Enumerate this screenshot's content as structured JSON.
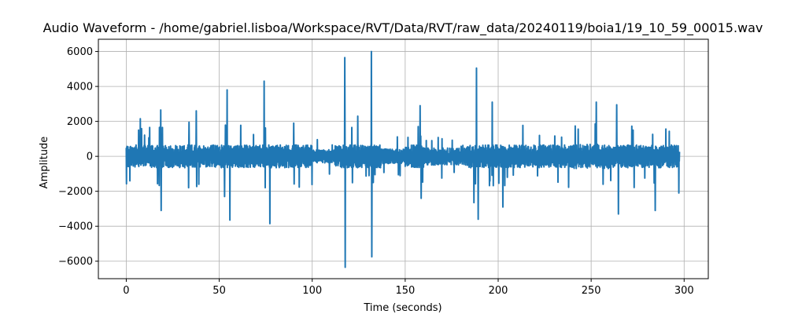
{
  "chart_data": {
    "type": "line",
    "title": "Audio Waveform - /home/gabriel.lisboa/Workspace/RVT/Data/RVT/raw_data/20240119/boia1/19_10_59_00015.wav",
    "xlabel": "Time (seconds)",
    "ylabel": "Amplitude",
    "xlim": [
      -15,
      313
    ],
    "ylim": [
      -7000,
      6700
    ],
    "xticks": [
      0,
      50,
      100,
      150,
      200,
      250,
      300
    ],
    "xtick_labels": [
      "0",
      "50",
      "100",
      "150",
      "200",
      "250",
      "300"
    ],
    "yticks": [
      -6000,
      -4000,
      -2000,
      0,
      2000,
      4000,
      6000
    ],
    "ytick_labels": [
      "−6000",
      "−4000",
      "−2000",
      "0",
      "2000",
      "4000",
      "6000"
    ],
    "grid": true,
    "line_color": "#1f77b4",
    "duration_seconds": 297.5,
    "peaks": [
      {
        "x": 7.5,
        "y": 2150
      },
      {
        "x": 18.5,
        "y": 2650
      },
      {
        "x": 18.8,
        "y": -3100
      },
      {
        "x": 33.8,
        "y": 1950
      },
      {
        "x": 37.7,
        "y": 2600
      },
      {
        "x": 52.9,
        "y": -2300
      },
      {
        "x": 54.2,
        "y": 3800
      },
      {
        "x": 55.7,
        "y": -3650
      },
      {
        "x": 74.1,
        "y": 4300
      },
      {
        "x": 77.2,
        "y": -3850
      },
      {
        "x": 90.0,
        "y": 1900
      },
      {
        "x": 117.5,
        "y": 5650
      },
      {
        "x": 117.7,
        "y": -6350
      },
      {
        "x": 124.5,
        "y": 2300
      },
      {
        "x": 131.8,
        "y": 6000
      },
      {
        "x": 132.0,
        "y": -5750
      },
      {
        "x": 158.0,
        "y": 2900
      },
      {
        "x": 158.6,
        "y": -2400
      },
      {
        "x": 187.0,
        "y": -2650
      },
      {
        "x": 188.3,
        "y": 5050
      },
      {
        "x": 189.3,
        "y": -3600
      },
      {
        "x": 196.8,
        "y": 3100
      },
      {
        "x": 202.5,
        "y": -2900
      },
      {
        "x": 252.8,
        "y": 3100
      },
      {
        "x": 263.8,
        "y": 2950
      },
      {
        "x": 264.7,
        "y": -3300
      },
      {
        "x": 284.5,
        "y": -3100
      },
      {
        "x": 297.2,
        "y": -2100
      }
    ]
  }
}
